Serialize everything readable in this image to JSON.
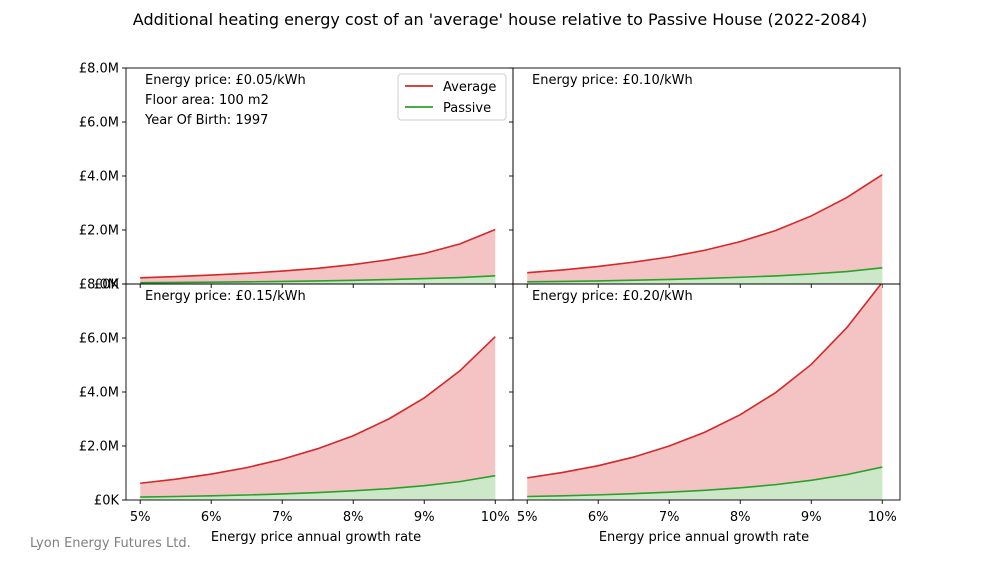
{
  "chart_data": {
    "type": "area",
    "title": "Additional heating energy cost of an 'average' house relative to Passive House (2022-2084)",
    "xlabel": "Energy price annual growth rate",
    "ylabel": "",
    "x": [
      5,
      5.5,
      6,
      6.5,
      7,
      7.5,
      8,
      8.5,
      9,
      9.5,
      10
    ],
    "x_ticks": [
      "5%",
      "6%",
      "7%",
      "8%",
      "9%",
      "10%"
    ],
    "y_ticks": [
      "£0K",
      "£2.0M",
      "£4.0M",
      "£6.0M",
      "£8.0M"
    ],
    "ylim": [
      0,
      8000000
    ],
    "xlim": [
      4.8,
      10.25
    ],
    "legend": {
      "position": "top-right",
      "entries": [
        "Average",
        "Passive"
      ]
    },
    "series_colors": {
      "Average": "#d62728",
      "Passive": "#2ca02c"
    },
    "fill_colors": {
      "Average": "#f4c3c4",
      "Passive": "#cce8c8"
    },
    "info": [
      "Floor area: 100 m2",
      "Year Of Birth: 1997"
    ],
    "panels": [
      {
        "label": "Energy price: £0.05/kWh",
        "series": [
          {
            "name": "Average",
            "values": [
              230000,
              275000,
              330000,
              395000,
              480000,
              580000,
              720000,
              900000,
              1130000,
              1480000,
              2020000
            ]
          },
          {
            "name": "Passive",
            "values": [
              50000,
              58000,
              68000,
              80000,
              95000,
              112000,
              135000,
              165000,
              200000,
              240000,
              305000
            ]
          }
        ]
      },
      {
        "label": "Energy price: £0.10/kWh",
        "series": [
          {
            "name": "Average",
            "values": [
              420000,
              520000,
              650000,
              810000,
              1000000,
              1250000,
              1570000,
              1980000,
              2520000,
              3200000,
              4050000
            ]
          },
          {
            "name": "Passive",
            "values": [
              80000,
              95000,
              115000,
              140000,
              170000,
              205000,
              250000,
              300000,
              370000,
              460000,
              600000
            ]
          }
        ]
      },
      {
        "label": "Energy price: £0.15/kWh",
        "series": [
          {
            "name": "Average",
            "values": [
              620000,
              770000,
              960000,
              1200000,
              1510000,
              1900000,
              2380000,
              3000000,
              3780000,
              4780000,
              6050000
            ]
          },
          {
            "name": "Passive",
            "values": [
              110000,
              130000,
              155000,
              185000,
              225000,
              275000,
              340000,
              420000,
              530000,
              680000,
              900000
            ]
          }
        ]
      },
      {
        "label": "Energy price: £0.20/kWh",
        "series": [
          {
            "name": "Average",
            "values": [
              820000,
              1020000,
              1270000,
              1590000,
              2000000,
              2510000,
              3160000,
              3980000,
              5020000,
              6380000,
              8060000
            ]
          },
          {
            "name": "Passive",
            "values": [
              130000,
              155000,
              190000,
              235000,
              290000,
              360000,
              450000,
              570000,
              730000,
              940000,
              1220000
            ]
          }
        ]
      }
    ]
  },
  "footer": {
    "credit": "Lyon Energy Futures Ltd."
  }
}
